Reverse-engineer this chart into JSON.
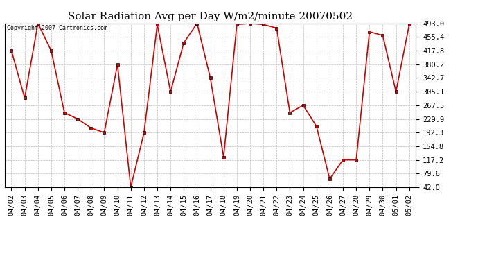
{
  "title": "Solar Radiation Avg per Day W/m2/minute 20070502",
  "copyright_text": "Copyright 2007 Cartronics.com",
  "dates": [
    "04/02",
    "04/03",
    "04/04",
    "04/05",
    "04/06",
    "04/07",
    "04/08",
    "04/09",
    "04/10",
    "04/11",
    "04/12",
    "04/13",
    "04/14",
    "04/15",
    "04/16",
    "04/17",
    "04/18",
    "04/19",
    "04/20",
    "04/21",
    "04/22",
    "04/23",
    "04/24",
    "04/25",
    "04/26",
    "04/27",
    "04/28",
    "04/29",
    "04/30",
    "05/01",
    "05/02"
  ],
  "values": [
    417.8,
    287.5,
    493.0,
    417.8,
    247.0,
    229.9,
    205.0,
    192.3,
    380.2,
    42.0,
    192.3,
    490.0,
    305.1,
    440.0,
    493.0,
    342.7,
    125.0,
    490.0,
    493.0,
    490.0,
    480.0,
    247.0,
    267.5,
    210.0,
    65.0,
    117.2,
    117.2,
    470.0,
    460.0,
    305.1,
    490.0
  ],
  "ymin": 42.0,
  "ymax": 493.0,
  "yticks": [
    42.0,
    79.6,
    117.2,
    154.8,
    192.3,
    229.9,
    267.5,
    305.1,
    342.7,
    380.2,
    417.8,
    455.4,
    493.0
  ],
  "line_color": "#cc0000",
  "marker_color": "#000000",
  "bg_color": "#ffffff",
  "grid_color": "#bbbbbb",
  "title_fontsize": 11,
  "tick_fontsize": 7.5
}
